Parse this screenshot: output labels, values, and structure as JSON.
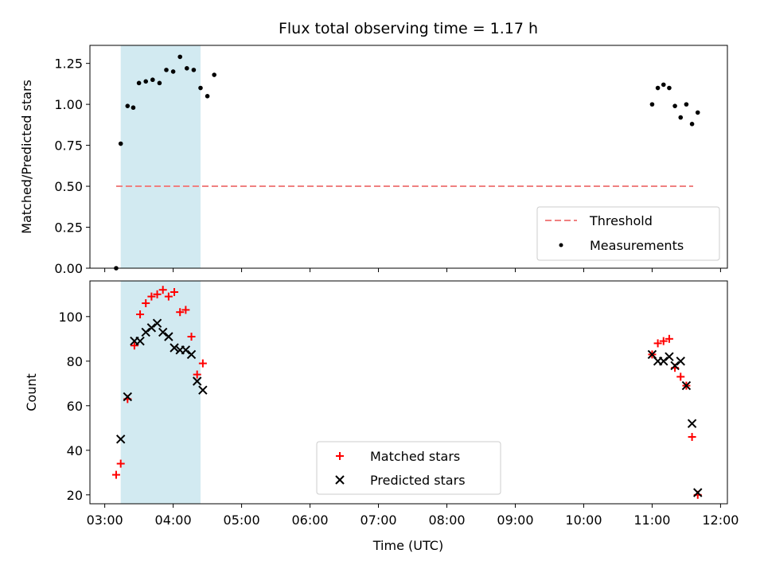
{
  "chart_data": [
    {
      "type": "scatter",
      "title": "Flux total observing time = 1.17 h",
      "xlabel": "",
      "ylabel": "Matched/Predicted stars",
      "xlim": [
        "03:00",
        "12:00"
      ],
      "ylim": [
        0,
        1.36
      ],
      "yticks": [
        "0.00",
        "0.25",
        "0.50",
        "0.75",
        "1.00",
        "1.25"
      ],
      "shaded_interval": [
        "03:14",
        "04:24"
      ],
      "threshold": {
        "name": "Threshold",
        "y": 0.5,
        "x_start": "03:10",
        "x_end": "11:36",
        "color": "#f08080"
      },
      "series": [
        {
          "name": "Measurements",
          "marker": "dot",
          "color": "#000000",
          "points": [
            [
              "03:10",
              0.0
            ],
            [
              "03:14",
              0.76
            ],
            [
              "03:20",
              0.99
            ],
            [
              "03:25",
              0.98
            ],
            [
              "03:30",
              1.13
            ],
            [
              "03:36",
              1.14
            ],
            [
              "03:42",
              1.15
            ],
            [
              "03:48",
              1.13
            ],
            [
              "03:54",
              1.21
            ],
            [
              "04:00",
              1.2
            ],
            [
              "04:06",
              1.29
            ],
            [
              "04:12",
              1.22
            ],
            [
              "04:18",
              1.21
            ],
            [
              "04:24",
              1.1
            ],
            [
              "04:30",
              1.05
            ],
            [
              "04:36",
              1.18
            ],
            [
              "11:00",
              1.0
            ],
            [
              "11:05",
              1.1
            ],
            [
              "11:10",
              1.12
            ],
            [
              "11:15",
              1.1
            ],
            [
              "11:20",
              0.99
            ],
            [
              "11:25",
              0.92
            ],
            [
              "11:30",
              1.0
            ],
            [
              "11:35",
              0.88
            ],
            [
              "11:40",
              0.95
            ]
          ]
        }
      ],
      "legend_position": "lower-right"
    },
    {
      "type": "scatter",
      "title": "",
      "xlabel": "Time (UTC)",
      "ylabel": "Count",
      "xlim": [
        "03:00",
        "12:00"
      ],
      "ylim": [
        16,
        116
      ],
      "yticks": [
        "20",
        "40",
        "60",
        "80",
        "100"
      ],
      "xticks": [
        "03:00",
        "04:00",
        "05:00",
        "06:00",
        "07:00",
        "08:00",
        "09:00",
        "10:00",
        "11:00",
        "12:00"
      ],
      "shaded_interval": [
        "03:14",
        "04:24"
      ],
      "series": [
        {
          "name": "Matched stars",
          "marker": "plus",
          "color": "#ff0000",
          "points": [
            [
              "03:10",
              29
            ],
            [
              "03:14",
              34
            ],
            [
              "03:20",
              63
            ],
            [
              "03:26",
              87
            ],
            [
              "03:31",
              101
            ],
            [
              "03:36",
              106
            ],
            [
              "03:41",
              109
            ],
            [
              "03:46",
              110
            ],
            [
              "03:51",
              112
            ],
            [
              "03:56",
              109
            ],
            [
              "04:01",
              111
            ],
            [
              "04:06",
              102
            ],
            [
              "04:11",
              103
            ],
            [
              "04:16",
              91
            ],
            [
              "04:21",
              74
            ],
            [
              "04:26",
              79
            ],
            [
              "11:00",
              83
            ],
            [
              "11:05",
              88
            ],
            [
              "11:10",
              89
            ],
            [
              "11:15",
              90
            ],
            [
              "11:20",
              77
            ],
            [
              "11:25",
              73
            ],
            [
              "11:30",
              69
            ],
            [
              "11:35",
              46
            ],
            [
              "11:40",
              20
            ]
          ]
        },
        {
          "name": "Predicted stars",
          "marker": "x",
          "color": "#000000",
          "points": [
            [
              "03:14",
              45
            ],
            [
              "03:20",
              64
            ],
            [
              "03:26",
              89
            ],
            [
              "03:31",
              89
            ],
            [
              "03:36",
              93
            ],
            [
              "03:41",
              95
            ],
            [
              "03:46",
              97
            ],
            [
              "03:51",
              93
            ],
            [
              "03:56",
              91
            ],
            [
              "04:01",
              86
            ],
            [
              "04:06",
              85
            ],
            [
              "04:11",
              85
            ],
            [
              "04:16",
              83
            ],
            [
              "04:21",
              71
            ],
            [
              "04:26",
              67
            ],
            [
              "11:00",
              83
            ],
            [
              "11:05",
              80
            ],
            [
              "11:10",
              80
            ],
            [
              "11:15",
              82
            ],
            [
              "11:20",
              78
            ],
            [
              "11:25",
              80
            ],
            [
              "11:30",
              69
            ],
            [
              "11:35",
              52
            ],
            [
              "11:40",
              21
            ]
          ]
        }
      ],
      "legend_position": "lower-center"
    }
  ]
}
